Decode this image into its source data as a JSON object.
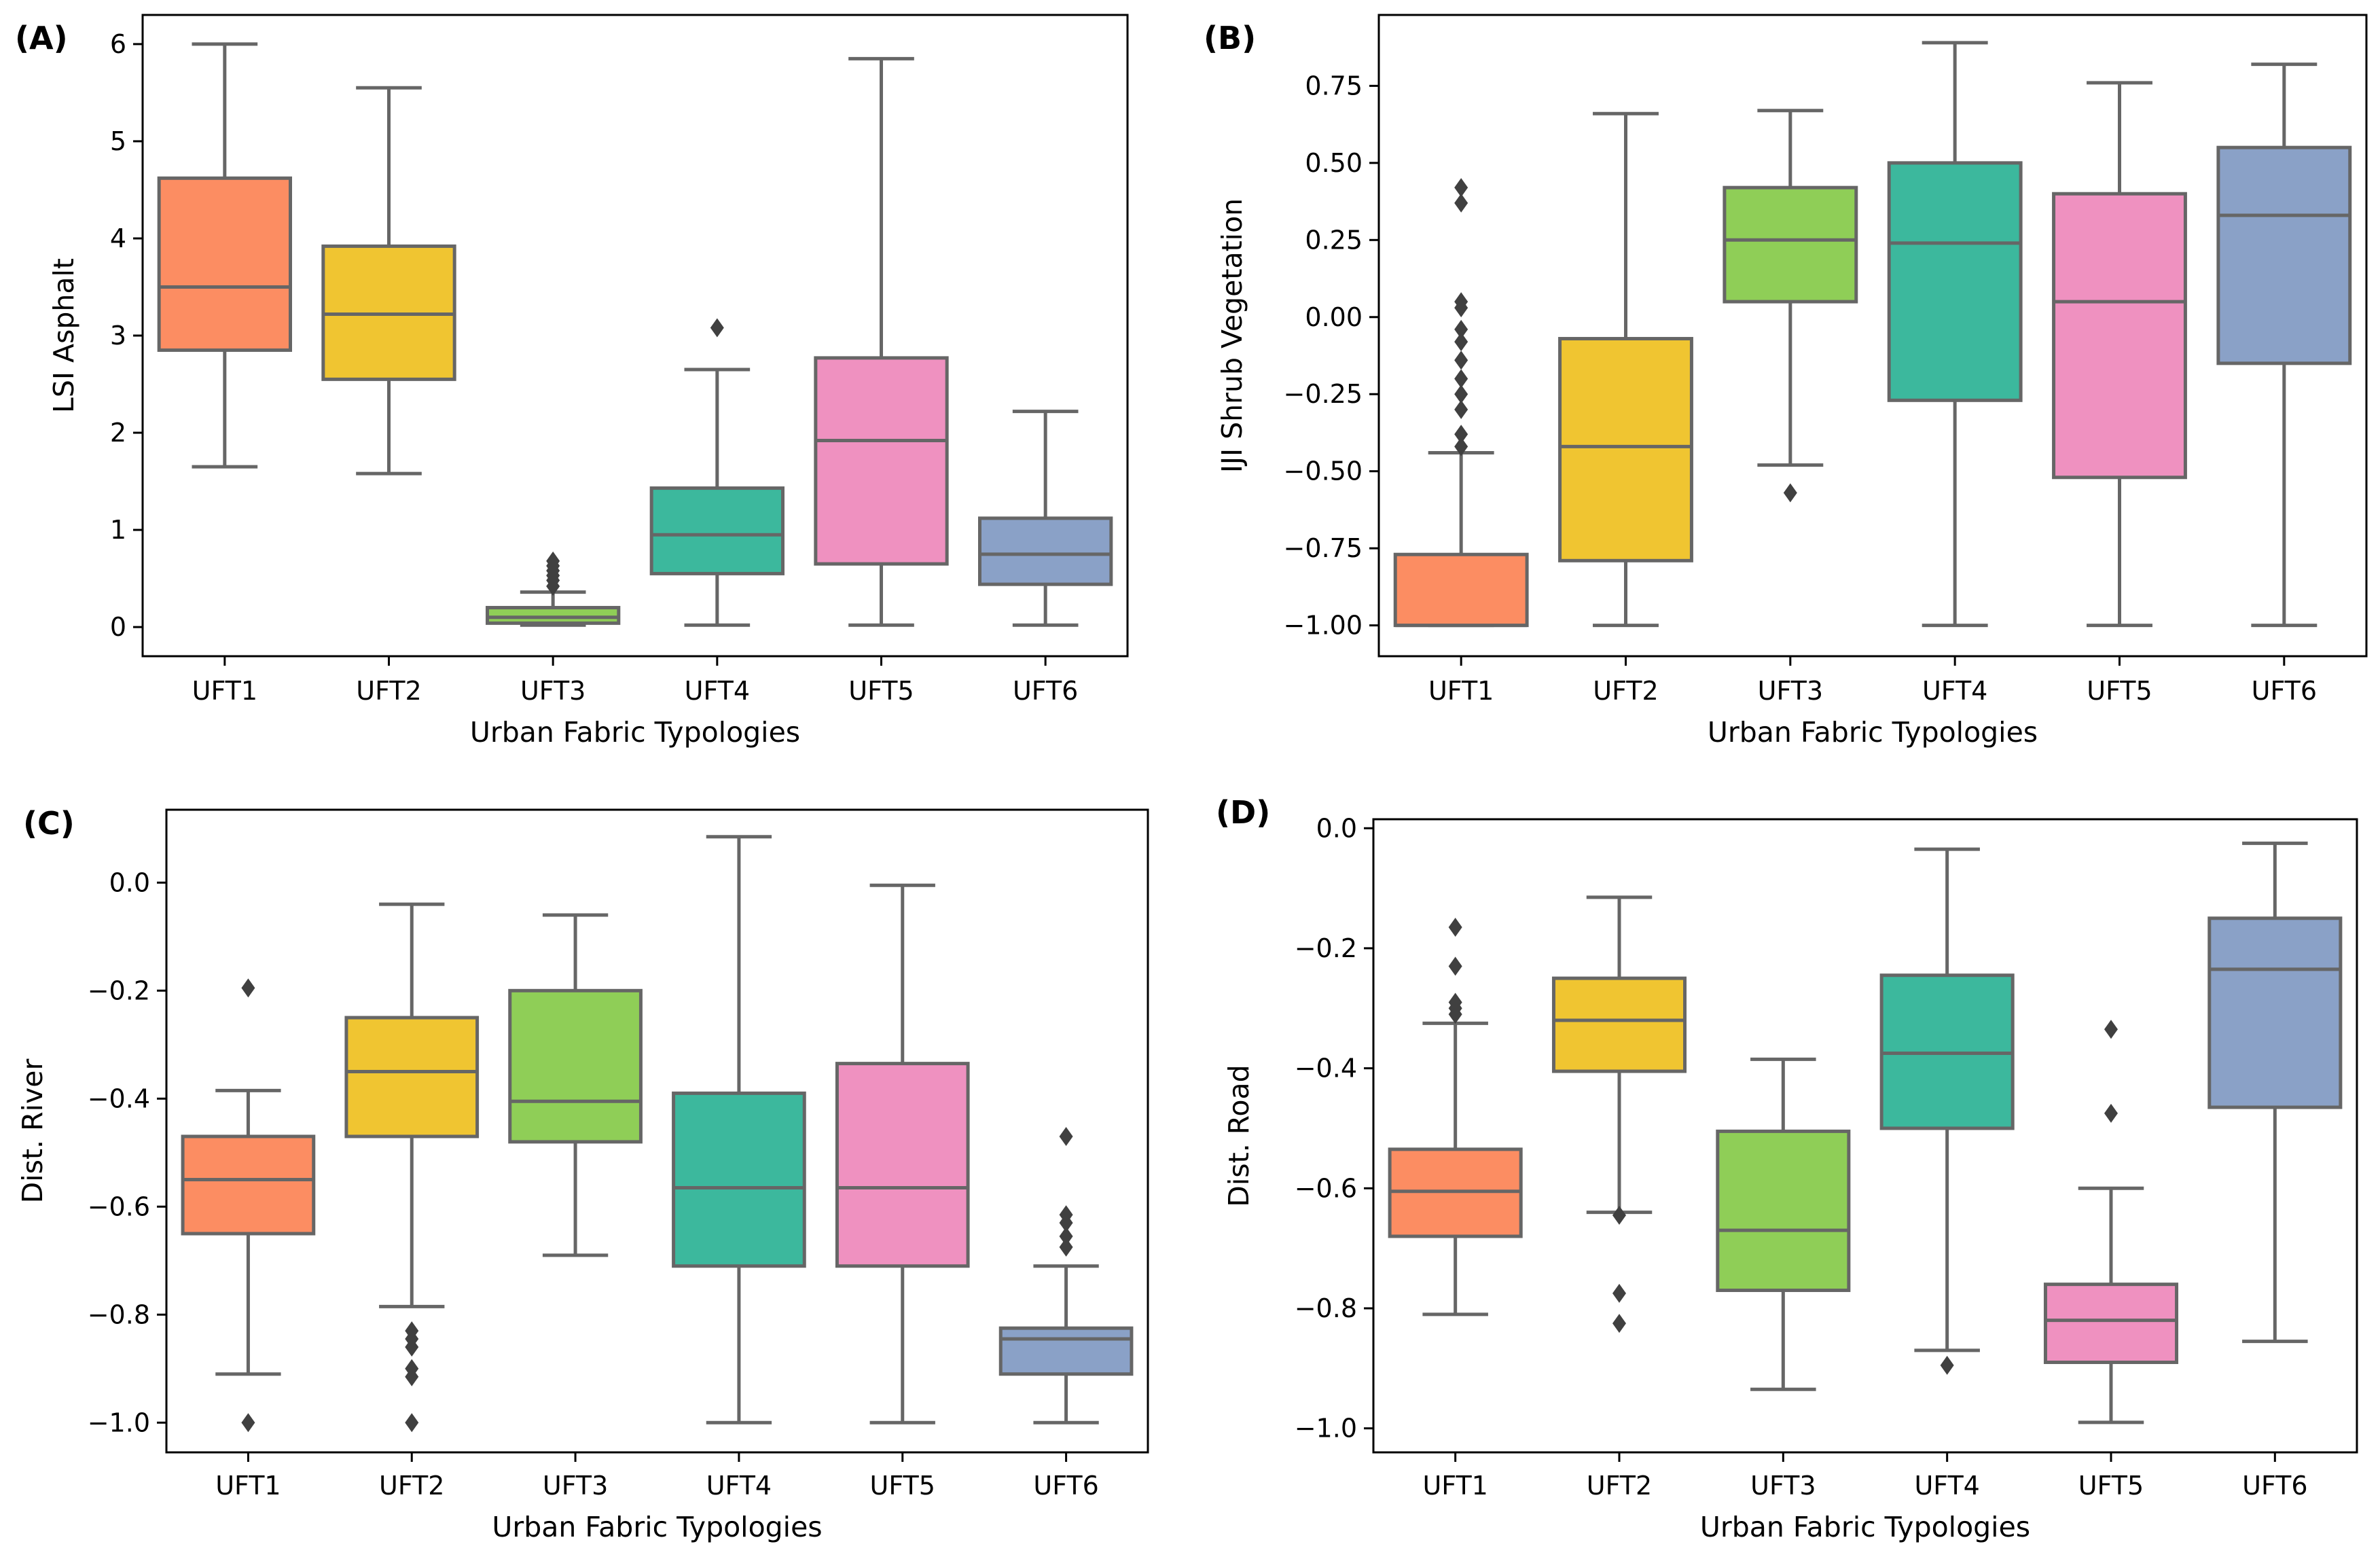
{
  "figure": {
    "background": "#ffffff"
  },
  "palette": {
    "UFT1": "#fc8d62",
    "UFT2": "#f0c531",
    "UFT3": "#8fce57",
    "UFT4": "#3cb89d",
    "UFT5": "#ef91c0",
    "UFT6": "#8aa1c7",
    "line": "#666666",
    "axis": "#000000"
  },
  "chart_data": [
    {
      "type": "box",
      "panel": "(A)",
      "xlabel": "Urban Fabric Typologies",
      "ylabel": "LSI Asphalt",
      "categories": [
        "UFT1",
        "UFT2",
        "UFT3",
        "UFT4",
        "UFT5",
        "UFT6"
      ],
      "ylim": [
        -0.3,
        6.3
      ],
      "yticks": [
        0,
        1,
        2,
        3,
        4,
        5,
        6
      ],
      "ytick_labels": [
        "0",
        "1",
        "2",
        "3",
        "4",
        "5",
        "6"
      ],
      "boxes": [
        {
          "category": "UFT1",
          "whislo": 1.65,
          "q1": 2.85,
          "med": 3.5,
          "q3": 4.62,
          "whishi": 6.0,
          "fliers": []
        },
        {
          "category": "UFT2",
          "whislo": 1.58,
          "q1": 2.55,
          "med": 3.22,
          "q3": 3.92,
          "whishi": 5.55,
          "fliers": []
        },
        {
          "category": "UFT3",
          "whislo": 0.02,
          "q1": 0.04,
          "med": 0.1,
          "q3": 0.2,
          "whishi": 0.36,
          "fliers": [
            0.42,
            0.48,
            0.53,
            0.58,
            0.63,
            0.68
          ]
        },
        {
          "category": "UFT4",
          "whislo": 0.02,
          "q1": 0.55,
          "med": 0.95,
          "q3": 1.43,
          "whishi": 2.65,
          "fliers": [
            3.08
          ]
        },
        {
          "category": "UFT5",
          "whislo": 0.02,
          "q1": 0.65,
          "med": 1.92,
          "q3": 2.77,
          "whishi": 5.85,
          "fliers": []
        },
        {
          "category": "UFT6",
          "whislo": 0.02,
          "q1": 0.44,
          "med": 0.75,
          "q3": 1.12,
          "whishi": 2.22,
          "fliers": []
        }
      ]
    },
    {
      "type": "box",
      "panel": "(B)",
      "xlabel": "Urban Fabric Typologies",
      "ylabel": "IJI Shrub Vegetation",
      "categories": [
        "UFT1",
        "UFT2",
        "UFT3",
        "UFT4",
        "UFT5",
        "UFT6"
      ],
      "ylim": [
        -1.1,
        0.98
      ],
      "yticks": [
        -1.0,
        -0.75,
        -0.5,
        -0.25,
        0.0,
        0.25,
        0.5,
        0.75
      ],
      "ytick_labels": [
        "−1.00",
        "−0.75",
        "−0.50",
        "−0.25",
        "0.00",
        "0.25",
        "0.50",
        "0.75"
      ],
      "boxes": [
        {
          "category": "UFT1",
          "whislo": -1.0,
          "q1": -1.0,
          "med": -1.0,
          "q3": -0.77,
          "whishi": -0.44,
          "fliers": [
            -0.42,
            -0.38,
            -0.3,
            -0.25,
            -0.2,
            -0.14,
            -0.08,
            -0.04,
            0.03,
            0.05,
            0.37,
            0.42
          ]
        },
        {
          "category": "UFT2",
          "whislo": -1.0,
          "q1": -0.79,
          "med": -0.42,
          "q3": -0.07,
          "whishi": 0.66,
          "fliers": []
        },
        {
          "category": "UFT3",
          "whislo": -0.48,
          "q1": 0.05,
          "med": 0.25,
          "q3": 0.42,
          "whishi": 0.67,
          "fliers": [
            -0.57
          ]
        },
        {
          "category": "UFT4",
          "whislo": -1.0,
          "q1": -0.27,
          "med": 0.24,
          "q3": 0.5,
          "whishi": 0.89,
          "fliers": []
        },
        {
          "category": "UFT5",
          "whislo": -1.0,
          "q1": -0.52,
          "med": 0.05,
          "q3": 0.4,
          "whishi": 0.76,
          "fliers": []
        },
        {
          "category": "UFT6",
          "whislo": -1.0,
          "q1": -0.15,
          "med": 0.33,
          "q3": 0.55,
          "whishi": 0.82,
          "fliers": []
        }
      ]
    },
    {
      "type": "box",
      "panel": "(C)",
      "xlabel": "Urban Fabric Typologies",
      "ylabel": "Dist. River",
      "categories": [
        "UFT1",
        "UFT2",
        "UFT3",
        "UFT4",
        "UFT5",
        "UFT6"
      ],
      "ylim": [
        -1.055,
        0.135
      ],
      "yticks": [
        -1.0,
        -0.8,
        -0.6,
        -0.4,
        -0.2,
        0.0
      ],
      "ytick_labels": [
        "−1.0",
        "−0.8",
        "−0.6",
        "−0.4",
        "−0.2",
        "0.0"
      ],
      "boxes": [
        {
          "category": "UFT1",
          "whislo": -0.91,
          "q1": -0.65,
          "med": -0.55,
          "q3": -0.47,
          "whishi": -0.385,
          "fliers": [
            -1.0,
            -0.195
          ]
        },
        {
          "category": "UFT2",
          "whislo": -0.785,
          "q1": -0.47,
          "med": -0.35,
          "q3": -0.25,
          "whishi": -0.04,
          "fliers": [
            -0.83,
            -0.845,
            -0.86,
            -0.9,
            -0.915,
            -1.0
          ]
        },
        {
          "category": "UFT3",
          "whislo": -0.69,
          "q1": -0.48,
          "med": -0.405,
          "q3": -0.2,
          "whishi": -0.06,
          "fliers": []
        },
        {
          "category": "UFT4",
          "whislo": -1.0,
          "q1": -0.71,
          "med": -0.565,
          "q3": -0.39,
          "whishi": 0.085,
          "fliers": []
        },
        {
          "category": "UFT5",
          "whislo": -1.0,
          "q1": -0.71,
          "med": -0.565,
          "q3": -0.335,
          "whishi": -0.005,
          "fliers": []
        },
        {
          "category": "UFT6",
          "whislo": -1.0,
          "q1": -0.91,
          "med": -0.845,
          "q3": -0.825,
          "whishi": -0.71,
          "fliers": [
            -0.47,
            -0.615,
            -0.63,
            -0.655,
            -0.675
          ]
        }
      ]
    },
    {
      "type": "box",
      "panel": "(D)",
      "xlabel": "Urban Fabric Typologies",
      "ylabel": "Dist. Road",
      "categories": [
        "UFT1",
        "UFT2",
        "UFT3",
        "UFT4",
        "UFT5",
        "UFT6"
      ],
      "ylim": [
        -1.04,
        0.015
      ],
      "yticks": [
        -1.0,
        -0.8,
        -0.6,
        -0.4,
        -0.2,
        0.0
      ],
      "ytick_labels": [
        "−1.0",
        "−0.8",
        "−0.6",
        "−0.4",
        "−0.2",
        "0.0"
      ],
      "boxes": [
        {
          "category": "UFT1",
          "whislo": -0.81,
          "q1": -0.68,
          "med": -0.605,
          "q3": -0.535,
          "whishi": -0.325,
          "fliers": [
            -0.165,
            -0.23,
            -0.29,
            -0.3,
            -0.31
          ]
        },
        {
          "category": "UFT2",
          "whislo": -0.64,
          "q1": -0.405,
          "med": -0.32,
          "q3": -0.25,
          "whishi": -0.115,
          "fliers": [
            -0.645,
            -0.775,
            -0.825
          ]
        },
        {
          "category": "UFT3",
          "whislo": -0.935,
          "q1": -0.77,
          "med": -0.67,
          "q3": -0.505,
          "whishi": -0.385,
          "fliers": []
        },
        {
          "category": "UFT4",
          "whislo": -0.87,
          "q1": -0.5,
          "med": -0.375,
          "q3": -0.245,
          "whishi": -0.035,
          "fliers": [
            -0.895
          ]
        },
        {
          "category": "UFT5",
          "whislo": -0.99,
          "q1": -0.89,
          "med": -0.82,
          "q3": -0.76,
          "whishi": -0.6,
          "fliers": [
            -0.335,
            -0.475
          ]
        },
        {
          "category": "UFT6",
          "whislo": -0.855,
          "q1": -0.465,
          "med": -0.235,
          "q3": -0.15,
          "whishi": -0.025,
          "fliers": []
        }
      ]
    }
  ]
}
